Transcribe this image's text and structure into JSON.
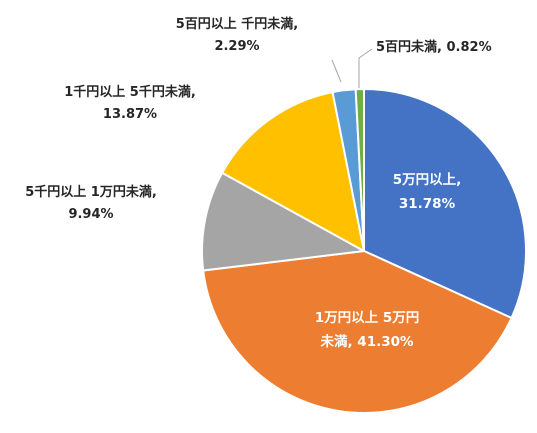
{
  "chart_data": {
    "type": "pie",
    "title": "",
    "start_angle_deg": 0,
    "direction": "clockwise",
    "slices": [
      {
        "label_lines": [
          "5万円以上,",
          "31.78%"
        ],
        "category": "5万円以上",
        "value": 31.78,
        "color": "#4472C4"
      },
      {
        "label_lines": [
          "1万円以上 5万円",
          "未満, 41.30%"
        ],
        "category": "1万円以上 5万円未満",
        "value": 41.3,
        "color": "#ED7D31"
      },
      {
        "label_lines": [
          "5千円以上 1万円未満,",
          "9.94%"
        ],
        "category": "5千円以上 1万円未満",
        "value": 9.94,
        "color": "#A5A5A5"
      },
      {
        "label_lines": [
          "1千円以上 5千円未満,",
          "13.87%"
        ],
        "category": "1千円以上 5千円未満",
        "value": 13.87,
        "color": "#FFC000"
      },
      {
        "label_lines": [
          "5百円以上 千円未満,",
          "2.29%"
        ],
        "category": "5百円以上 千円未満",
        "value": 2.29,
        "color": "#5B9BD5"
      },
      {
        "label_lines": [
          "5百円未満, 0.82%"
        ],
        "category": "5百円未満",
        "value": 0.82,
        "color": "#70AD47"
      }
    ]
  }
}
